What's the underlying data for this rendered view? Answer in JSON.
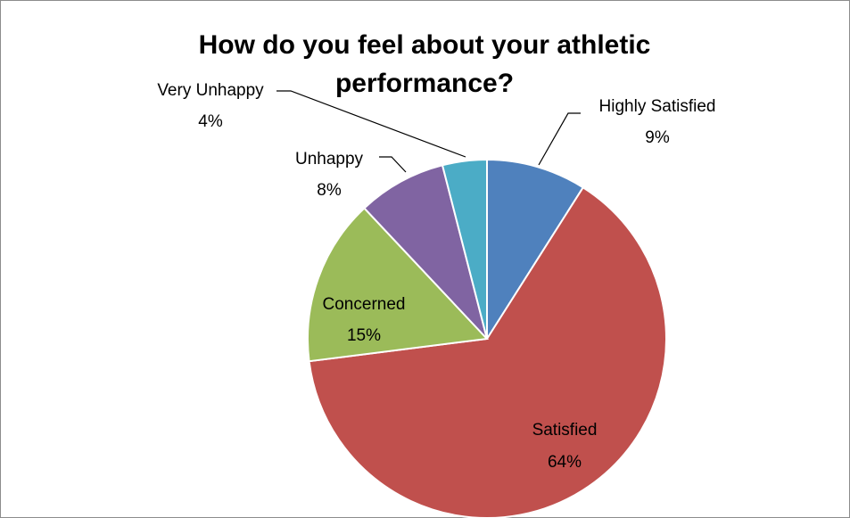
{
  "chart_data": {
    "type": "pie",
    "title_lines": [
      "How do you feel about your athletic",
      "performance?"
    ],
    "start_angle_deg": 0,
    "direction": "clockwise",
    "slices": [
      {
        "label": "Highly Satisfied",
        "value": 9,
        "display": "9%",
        "color": "#4f81bd"
      },
      {
        "label": "Satisfied",
        "value": 64,
        "display": "64%",
        "color": "#c0504d"
      },
      {
        "label": "Concerned",
        "value": 15,
        "display": "15%",
        "color": "#9bbb59"
      },
      {
        "label": "Unhappy",
        "value": 8,
        "display": "8%",
        "color": "#8064a2"
      },
      {
        "label": "Very Unhappy",
        "value": 4,
        "display": "4%",
        "color": "#4bacc6"
      }
    ]
  }
}
